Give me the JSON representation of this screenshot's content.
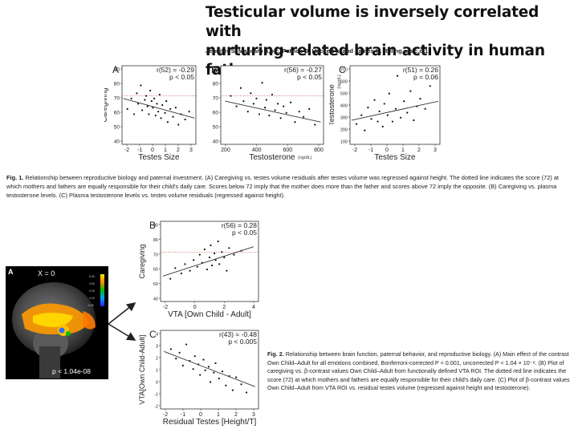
{
  "paper": {
    "title_line1": "Testicular volume is inversely correlated with",
    "title_line2": "nurturing-related brain activity in human fathers",
    "authors": "Jennifer S. Mascaro a,b,c, Patrick D. Hackett a, and James K. Rilling a,b,c,d,1"
  },
  "figure1": {
    "caption_label": "Fig. 1.",
    "caption_text": "Relationship between reproductive biology and paternal investment. (A) Caregiving vs. testes volume residuals after testes volume was regressed against height. The dotted line indicates the score (72) at which mothers and fathers are equally responsible for their child's daily care. Scores below 72 imply that the mother does more than the father and scores above 72 imply the opposite. (B) Caregiving vs. plasma testosterone levels. (C) Plasma testosterone levels vs. testes volume residuals (regressed against height).",
    "panels": [
      {
        "letter": "A",
        "stat_r": "r(52) = -0.29",
        "stat_p": "p < 0.05",
        "ylabel": "Caregiving",
        "xlabel": "Testes Size",
        "yticks": [
          "90",
          "80",
          "70",
          "60",
          "50",
          "40"
        ],
        "xticks": [
          "-2",
          "-1",
          "0",
          "1",
          "2",
          "3"
        ]
      },
      {
        "letter": "B",
        "stat_r": "r(56) = -0.27",
        "stat_p": "p < 0.05",
        "ylabel": "",
        "xlabel": "Testosterone",
        "xunit": "(ng/dL)",
        "yticks": [
          "90",
          "80",
          "70",
          "60",
          "50",
          "40"
        ],
        "xticks": [
          "200",
          "400",
          "600",
          "800"
        ]
      },
      {
        "letter": "C",
        "stat_r": "r(51) = 0.26",
        "stat_p": "p = 0.06",
        "ylabel": "Testosterone",
        "yunit": "(ng/dL)",
        "xlabel": "Testes Size",
        "yticks": [
          "700",
          "600",
          "500",
          "400",
          "300",
          "200",
          "100"
        ],
        "xticks": [
          "-2",
          "-1",
          "0",
          "1",
          "2",
          "3"
        ]
      }
    ]
  },
  "figure2": {
    "caption_label": "Fig. 2.",
    "caption_text": "Relationship between brain function, paternal behavior, and reproductive biology. (A) Main effect of the contrast Own Child–Adult for all emotions combined, Bonferroni-corrected P < 0.001, uncorrected P < 1.04 × 10⁻⁸. (B) Plot of caregiving vs. β-contrast values Own Child–Adult from functionally defined VTA ROI. The dotted red line indicates the score (72) at which mothers and fathers are equally responsible for their child's daily care. (C) Plot of β-contrast values Own Child–Adult from VTA ROI vs. residual testes volume (regressed against height and testosterone).",
    "brain": {
      "letter": "A",
      "slice_label": "X = 0",
      "threshold_label": "p < 1.04e-08",
      "colorbar_labels": [
        "6.00",
        "4.00",
        "2.00",
        "0.00",
        "-2.00"
      ]
    },
    "panels": [
      {
        "letter": "B",
        "stat_r": "r(56) = 0.28",
        "stat_p": "p < 0.05",
        "ylabel": "Caregiving",
        "xlabel": "VTA [Own Child - Adult]",
        "yticks": [
          "90",
          "80",
          "70",
          "60",
          "50",
          "40"
        ],
        "xticks": [
          "-2",
          "0",
          "2",
          "4"
        ]
      },
      {
        "letter": "C",
        "stat_r": "r(43) = -0.48",
        "stat_p": "p < 0.005",
        "ylabel": "VTA[Own Child-Adult]",
        "xlabel": "Residual Testes [Height/T]",
        "yticks": [
          "4",
          "3",
          "2",
          "1",
          "0",
          "-1",
          "-2"
        ],
        "xticks": [
          "-2",
          "-1",
          "0",
          "1",
          "2",
          "3"
        ]
      }
    ]
  },
  "chart_data": [
    {
      "type": "scatter",
      "title": "A",
      "xlabel": "Testes Size",
      "ylabel": "Caregiving",
      "xlim": [
        -2.3,
        3.2
      ],
      "ylim": [
        35,
        95
      ],
      "reference_line": 72,
      "points": [
        [
          -1.9,
          62
        ],
        [
          -1.6,
          70
        ],
        [
          -1.4,
          58
        ],
        [
          -1.2,
          74
        ],
        [
          -1.1,
          66
        ],
        [
          -0.9,
          80
        ],
        [
          -0.8,
          61
        ],
        [
          -0.6,
          69
        ],
        [
          -0.5,
          72
        ],
        [
          -0.4,
          64
        ],
        [
          -0.3,
          58
        ],
        [
          -0.2,
          76
        ],
        [
          -0.1,
          68
        ],
        [
          0.0,
          63
        ],
        [
          0.1,
          70
        ],
        [
          0.2,
          57
        ],
        [
          0.3,
          66
        ],
        [
          0.4,
          60
        ],
        [
          0.5,
          73
        ],
        [
          0.6,
          55
        ],
        [
          0.7,
          65
        ],
        [
          0.9,
          59
        ],
        [
          1.0,
          68
        ],
        [
          1.1,
          52
        ],
        [
          1.3,
          62
        ],
        [
          1.5,
          56
        ],
        [
          1.7,
          63
        ],
        [
          1.9,
          50
        ],
        [
          2.1,
          58
        ],
        [
          2.4,
          54
        ],
        [
          2.7,
          60
        ]
      ],
      "fit": [
        [
          -2.2,
          70
        ],
        [
          3.1,
          55
        ]
      ]
    },
    {
      "type": "scatter",
      "title": "B",
      "xlabel": "Testosterone",
      "xlim": [
        100,
        820
      ],
      "ylim": [
        35,
        95
      ],
      "reference_line": 72,
      "points": [
        [
          170,
          72
        ],
        [
          210,
          64
        ],
        [
          240,
          78
        ],
        [
          260,
          68
        ],
        [
          290,
          60
        ],
        [
          310,
          74
        ],
        [
          330,
          66
        ],
        [
          350,
          70
        ],
        [
          370,
          58
        ],
        [
          390,
          82
        ],
        [
          410,
          63
        ],
        [
          420,
          69
        ],
        [
          440,
          57
        ],
        [
          460,
          73
        ],
        [
          480,
          61
        ],
        [
          500,
          66
        ],
        [
          520,
          55
        ],
        [
          540,
          64
        ],
        [
          560,
          59
        ],
        [
          590,
          67
        ],
        [
          620,
          52
        ],
        [
          650,
          60
        ],
        [
          680,
          56
        ],
        [
          720,
          62
        ],
        [
          760,
          50
        ]
      ],
      "fit": [
        [
          130,
          68
        ],
        [
          800,
          52
        ]
      ]
    },
    {
      "type": "scatter",
      "title": "C",
      "xlabel": "Testes Size",
      "ylabel": "Testosterone",
      "xlim": [
        -2.3,
        3.2
      ],
      "ylim": [
        100,
        720
      ],
      "points": [
        [
          -1.9,
          260
        ],
        [
          -1.6,
          330
        ],
        [
          -1.4,
          210
        ],
        [
          -1.2,
          390
        ],
        [
          -1.0,
          300
        ],
        [
          -0.8,
          450
        ],
        [
          -0.6,
          280
        ],
        [
          -0.5,
          360
        ],
        [
          -0.3,
          240
        ],
        [
          -0.2,
          420
        ],
        [
          0.0,
          330
        ],
        [
          0.1,
          500
        ],
        [
          0.3,
          280
        ],
        [
          0.5,
          380
        ],
        [
          0.6,
          640
        ],
        [
          0.8,
          310
        ],
        [
          1.0,
          440
        ],
        [
          1.2,
          350
        ],
        [
          1.4,
          520
        ],
        [
          1.6,
          290
        ],
        [
          1.8,
          400
        ],
        [
          2.0,
          460
        ],
        [
          2.3,
          380
        ],
        [
          2.6,
          560
        ]
      ],
      "fit": [
        [
          -2.2,
          290
        ],
        [
          3.1,
          440
        ]
      ]
    },
    {
      "type": "scatter",
      "title": "B",
      "xlabel": "VTA [Own Child - Adult]",
      "ylabel": "Caregiving",
      "xlim": [
        -3,
        5
      ],
      "ylim": [
        35,
        95
      ],
      "reference_line": 72,
      "points": [
        [
          -2.2,
          52
        ],
        [
          -1.8,
          60
        ],
        [
          -1.3,
          56
        ],
        [
          -1.0,
          63
        ],
        [
          -0.6,
          58
        ],
        [
          -0.3,
          66
        ],
        [
          0.0,
          61
        ],
        [
          0.2,
          70
        ],
        [
          0.4,
          64
        ],
        [
          0.6,
          74
        ],
        [
          0.8,
          59
        ],
        [
          1.0,
          68
        ],
        [
          1.1,
          77
        ],
        [
          1.2,
          62
        ],
        [
          1.4,
          71
        ],
        [
          1.5,
          66
        ],
        [
          1.7,
          80
        ],
        [
          1.8,
          63
        ],
        [
          2.0,
          72
        ],
        [
          2.2,
          68
        ],
        [
          2.4,
          58
        ],
        [
          2.6,
          75
        ],
        [
          3.0,
          70
        ],
        [
          3.6,
          73
        ]
      ],
      "fit": [
        [
          -2.8,
          54
        ],
        [
          4.6,
          76
        ]
      ]
    },
    {
      "type": "scatter",
      "title": "C",
      "xlabel": "Residual Testes [Height/T]",
      "ylabel": "VTA[Own Child-Adult]",
      "xlim": [
        -2.5,
        3.2
      ],
      "ylim": [
        -2.5,
        4.2
      ],
      "points": [
        [
          -1.9,
          2.6
        ],
        [
          -1.6,
          1.8
        ],
        [
          -1.4,
          2.3
        ],
        [
          -1.2,
          1.2
        ],
        [
          -1.0,
          3.0
        ],
        [
          -0.8,
          1.6
        ],
        [
          -0.6,
          0.9
        ],
        [
          -0.5,
          2.0
        ],
        [
          -0.3,
          1.3
        ],
        [
          -0.2,
          0.4
        ],
        [
          0.0,
          1.7
        ],
        [
          0.1,
          0.8
        ],
        [
          0.3,
          1.1
        ],
        [
          0.4,
          -0.2
        ],
        [
          0.6,
          0.6
        ],
        [
          0.7,
          1.4
        ],
        [
          0.9,
          0.1
        ],
        [
          1.1,
          0.7
        ],
        [
          1.3,
          -0.5
        ],
        [
          1.5,
          0.3
        ],
        [
          1.7,
          -0.9
        ],
        [
          1.9,
          0.2
        ],
        [
          2.2,
          -0.4
        ],
        [
          2.5,
          -1.1
        ]
      ],
      "fit": [
        [
          -2.3,
          2.4
        ],
        [
          3.0,
          -0.6
        ]
      ]
    }
  ]
}
